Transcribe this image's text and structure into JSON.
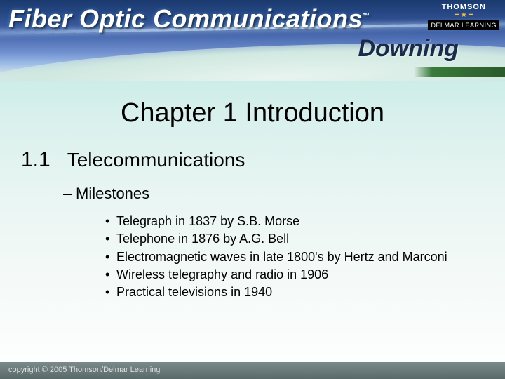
{
  "header": {
    "book_title": "Fiber Optic Communications",
    "tm": "™",
    "author": "Downing",
    "brand_top": "THOMSON",
    "brand_bottom": "DELMAR LEARNING"
  },
  "content": {
    "chapter_title": "Chapter 1 Introduction",
    "section_num": "1.1",
    "section_title": "Telecommunications",
    "sub_label": "Milestones",
    "bullets": [
      "Telegraph in 1837 by S.B. Morse",
      "Telephone in 1876 by A.G. Bell",
      "Electromagnetic waves in late 1800's by Hertz and Marconi",
      "Wireless telegraphy and radio in 1906",
      "Practical televisions in 1940"
    ]
  },
  "footer": {
    "copyright": "copyright © 2005 Thomson/Delmar Learning"
  },
  "colors": {
    "header_grad_top": "#1a3a6e",
    "header_grad_bottom": "#e0ecef",
    "body_grad_top": "#b8e6e0",
    "body_grad_bottom": "#ffffff",
    "footer_bg": "#5a6a6a",
    "text": "#000000",
    "title_text": "#ffffff",
    "author_text": "#1a2a4a"
  },
  "typography": {
    "chapter_title_size": 38,
    "section_num_size": 30,
    "section_title_size": 28,
    "sub_size": 22,
    "bullet_size": 18,
    "footer_size": 11
  }
}
